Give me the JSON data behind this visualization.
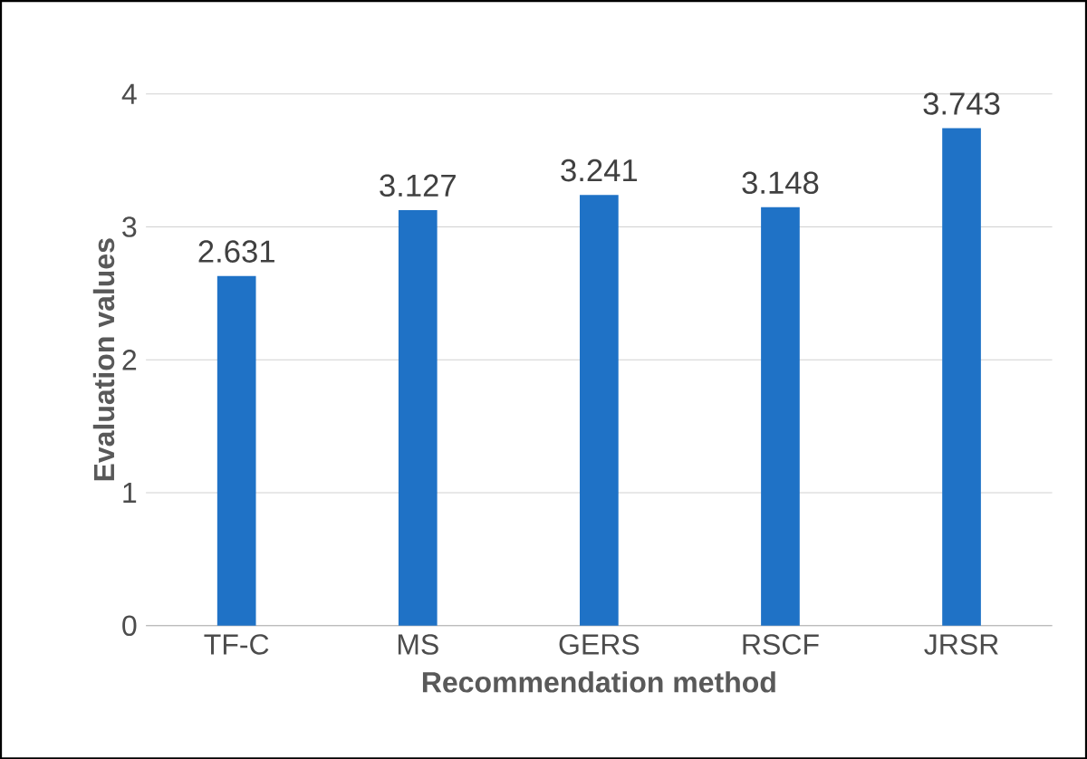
{
  "chart_data": {
    "type": "bar",
    "xlabel": "Recommendation method",
    "ylabel": "Evaluation values",
    "categories": [
      "TF-C",
      "MS",
      "GERS",
      "RSCF",
      "JRSR"
    ],
    "values": [
      2.631,
      3.127,
      3.241,
      3.148,
      3.743
    ],
    "color": "#1f72c6",
    "ylim": [
      0,
      4
    ],
    "yticks": [
      0,
      1,
      2,
      3,
      4
    ],
    "grid": "y",
    "data_labels": true
  }
}
